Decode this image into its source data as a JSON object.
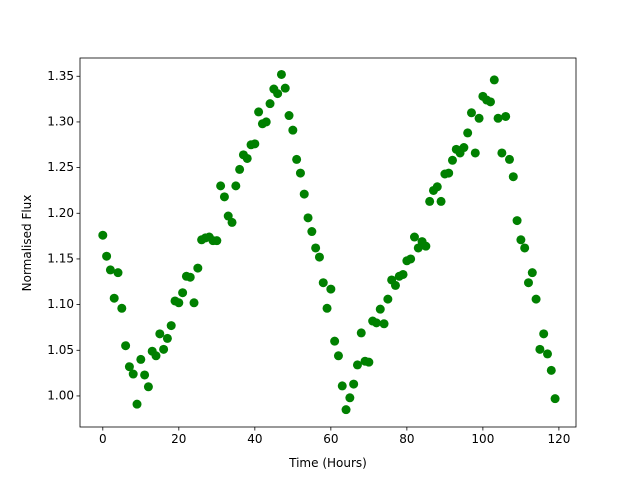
{
  "chart_data": {
    "type": "scatter",
    "x_label": "Time (Hours)",
    "y_label": "Normalised Flux",
    "color": "#008000",
    "x": [
      0,
      1,
      2,
      3,
      4,
      5,
      6,
      7,
      8,
      9,
      10,
      11,
      12,
      13,
      14,
      15,
      16,
      17,
      18,
      19,
      20,
      21,
      22,
      23,
      24,
      25,
      26,
      27,
      28,
      29,
      30,
      31,
      32,
      33,
      34,
      35,
      36,
      37,
      38,
      39,
      40,
      41,
      42,
      43,
      44,
      45,
      46,
      47,
      48,
      49,
      50,
      51,
      52,
      53,
      54,
      55,
      56,
      57,
      58,
      59,
      60,
      61,
      62,
      63,
      64,
      65,
      66,
      67,
      68,
      69,
      70,
      71,
      72,
      73,
      74,
      75,
      76,
      77,
      78,
      79,
      80,
      81,
      82,
      83,
      84,
      85,
      86,
      87,
      88,
      89,
      90,
      91,
      92,
      93,
      94,
      95,
      96,
      97,
      98,
      99,
      100,
      101,
      102,
      103,
      104,
      105,
      106,
      107,
      108,
      109,
      110,
      111,
      112,
      113,
      114,
      115,
      116,
      117,
      118,
      119
    ],
    "values": [
      1.176,
      1.153,
      1.138,
      1.107,
      1.135,
      1.096,
      1.055,
      1.032,
      1.024,
      0.991,
      1.04,
      1.023,
      1.01,
      1.049,
      1.044,
      1.068,
      1.051,
      1.063,
      1.077,
      1.104,
      1.102,
      1.113,
      1.131,
      1.13,
      1.102,
      1.14,
      1.171,
      1.173,
      1.174,
      1.17,
      1.17,
      1.23,
      1.218,
      1.197,
      1.19,
      1.23,
      1.248,
      1.264,
      1.26,
      1.275,
      1.276,
      1.311,
      1.298,
      1.3,
      1.32,
      1.336,
      1.331,
      1.352,
      1.337,
      1.307,
      1.291,
      1.259,
      1.244,
      1.221,
      1.195,
      1.18,
      1.162,
      1.152,
      1.124,
      1.096,
      1.117,
      1.06,
      1.044,
      1.011,
      0.985,
      0.998,
      1.013,
      1.034,
      1.069,
      1.038,
      1.037,
      1.082,
      1.08,
      1.095,
      1.079,
      1.106,
      1.127,
      1.121,
      1.131,
      1.133,
      1.148,
      1.15,
      1.174,
      1.162,
      1.169,
      1.164,
      1.213,
      1.225,
      1.229,
      1.213,
      1.243,
      1.244,
      1.258,
      1.27,
      1.266,
      1.272,
      1.288,
      1.31,
      1.266,
      1.304,
      1.328,
      1.324,
      1.322,
      1.346,
      1.304,
      1.266,
      1.306,
      1.259,
      1.24,
      1.192,
      1.171,
      1.162,
      1.124,
      1.135,
      1.106,
      1.051,
      1.068,
      1.046,
      1.028,
      0.997
    ],
    "xlim": [
      -6,
      124.5
    ],
    "ylim": [
      0.966,
      1.37
    ],
    "xticks": [
      0,
      20,
      40,
      60,
      80,
      100,
      120
    ],
    "yticks": [
      {
        "value": 1,
        "label": "1.00"
      },
      1.05,
      {
        "value": 1.1,
        "label": "1.10"
      },
      1.15,
      {
        "value": 1.2,
        "label": "1.20"
      },
      1.25,
      {
        "value": 1.3,
        "label": "1.30"
      },
      1.35
    ]
  }
}
